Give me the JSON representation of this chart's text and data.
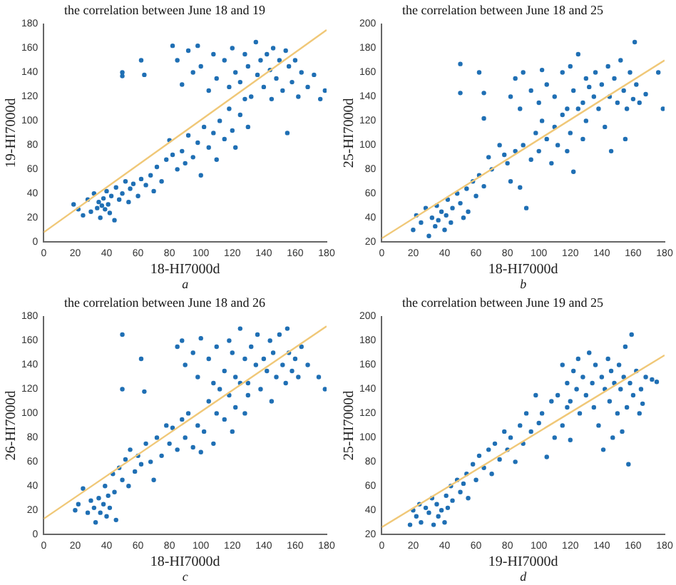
{
  "chart_data": [
    {
      "type": "scatter",
      "title": "the correlation between June 18 and 19",
      "xlabel": "18-HI7000d",
      "ylabel": "19-HI7000d",
      "annotations": [
        "a"
      ],
      "xlim": [
        0,
        180
      ],
      "xticks": [
        0,
        20,
        40,
        60,
        80,
        100,
        120,
        140,
        160,
        180
      ],
      "ylim": [
        0,
        180
      ],
      "yticks": [
        0,
        20,
        40,
        60,
        80,
        100,
        120,
        140,
        160,
        180
      ],
      "series": [
        {
          "marker": "circle",
          "color": "#1f6fb4",
          "x": [
            19,
            22,
            25,
            28,
            30,
            32,
            34,
            35,
            36,
            37,
            38,
            39,
            40,
            41,
            42,
            43,
            45,
            46,
            48,
            50,
            52,
            54,
            55,
            57,
            60,
            62,
            65,
            68,
            70,
            72,
            75,
            78,
            80,
            82,
            85,
            88,
            90,
            92,
            95,
            98,
            100,
            102,
            105,
            108,
            110,
            112,
            115,
            118,
            120,
            122,
            125,
            128,
            130,
            82,
            85,
            88,
            92,
            95,
            98,
            100,
            105,
            108,
            110,
            115,
            118,
            120,
            122,
            125,
            128,
            130,
            132,
            135,
            136,
            138,
            140,
            142,
            144,
            145,
            146,
            148,
            150,
            152,
            154,
            155,
            156,
            158,
            160,
            162,
            164,
            168,
            172,
            176,
            179,
            50,
            62,
            64,
            50
          ],
          "values": [
            31,
            27,
            22,
            35,
            25,
            40,
            28,
            33,
            20,
            30,
            36,
            27,
            42,
            31,
            24,
            38,
            18,
            45,
            35,
            40,
            50,
            33,
            44,
            48,
            38,
            52,
            47,
            55,
            42,
            62,
            50,
            68,
            84,
            72,
            60,
            75,
            65,
            88,
            70,
            82,
            55,
            95,
            78,
            90,
            68,
            100,
            85,
            110,
            92,
            78,
            105,
            118,
            95,
            162,
            150,
            130,
            158,
            140,
            162,
            145,
            125,
            155,
            135,
            150,
            128,
            160,
            140,
            132,
            155,
            145,
            120,
            165,
            138,
            150,
            128,
            155,
            142,
            118,
            160,
            135,
            150,
            125,
            158,
            90,
            145,
            132,
            150,
            120,
            140,
            128,
            138,
            118,
            125,
            140,
            150,
            138,
            137
          ]
        },
        {
          "type": "line",
          "color": "#f0c878",
          "x": [
            0,
            180
          ],
          "values": [
            8,
            175
          ]
        }
      ]
    },
    {
      "type": "scatter",
      "title": "the correlation between June 18 and 25",
      "xlabel": "18-HI7000d",
      "ylabel": "25-HI7000d",
      "annotations": [
        "b"
      ],
      "xlim": [
        0,
        180
      ],
      "xticks": [
        0,
        20,
        40,
        60,
        80,
        100,
        120,
        140,
        160,
        180
      ],
      "ylim": [
        20,
        200
      ],
      "yticks": [
        20,
        40,
        60,
        80,
        100,
        120,
        140,
        160,
        180,
        200
      ],
      "series": [
        {
          "marker": "circle",
          "color": "#1f6fb4",
          "x": [
            20,
            22,
            25,
            28,
            30,
            32,
            34,
            35,
            36,
            38,
            40,
            41,
            42,
            44,
            45,
            48,
            50,
            52,
            54,
            55,
            58,
            60,
            62,
            65,
            68,
            70,
            75,
            78,
            80,
            82,
            85,
            88,
            90,
            92,
            95,
            98,
            100,
            102,
            105,
            108,
            110,
            112,
            115,
            118,
            120,
            122,
            125,
            128,
            130,
            82,
            85,
            88,
            90,
            95,
            100,
            102,
            105,
            110,
            115,
            118,
            120,
            122,
            125,
            128,
            130,
            132,
            135,
            136,
            138,
            140,
            142,
            144,
            145,
            146,
            148,
            150,
            152,
            154,
            155,
            156,
            158,
            160,
            161,
            162,
            164,
            168,
            176,
            179,
            50,
            50,
            62,
            65,
            65
          ],
          "values": [
            30,
            42,
            36,
            48,
            25,
            40,
            33,
            50,
            38,
            45,
            30,
            42,
            55,
            36,
            48,
            60,
            52,
            40,
            64,
            45,
            70,
            58,
            75,
            66,
            90,
            80,
            100,
            92,
            85,
            70,
            95,
            65,
            100,
            48,
            88,
            110,
            95,
            120,
            105,
            85,
            115,
            100,
            125,
            95,
            110,
            78,
            130,
            105,
            120,
            140,
            155,
            130,
            160,
            145,
            135,
            162,
            150,
            140,
            160,
            130,
            165,
            145,
            175,
            135,
            155,
            148,
            140,
            160,
            130,
            150,
            115,
            165,
            140,
            95,
            155,
            135,
            170,
            145,
            105,
            130,
            160,
            138,
            185,
            150,
            135,
            142,
            160,
            130,
            167,
            143,
            160,
            143,
            122
          ]
        },
        {
          "type": "line",
          "color": "#f0c878",
          "x": [
            0,
            180
          ],
          "values": [
            23,
            170
          ]
        }
      ]
    },
    {
      "type": "scatter",
      "title": "the correlation between June 18 and 26",
      "xlabel": "18-HI7000d",
      "ylabel": "26-HI7000d",
      "annotations": [
        "c"
      ],
      "xlim": [
        0,
        180
      ],
      "xticks": [
        0,
        20,
        40,
        60,
        80,
        100,
        120,
        140,
        160,
        180
      ],
      "ylim": [
        0,
        180
      ],
      "yticks": [
        0,
        20,
        40,
        60,
        80,
        100,
        120,
        140,
        160,
        180
      ],
      "series": [
        {
          "marker": "circle",
          "color": "#1f6fb4",
          "x": [
            20,
            22,
            25,
            28,
            30,
            32,
            33,
            35,
            36,
            38,
            39,
            40,
            41,
            42,
            44,
            45,
            46,
            48,
            50,
            52,
            54,
            55,
            58,
            60,
            62,
            65,
            68,
            70,
            72,
            75,
            78,
            80,
            82,
            85,
            88,
            90,
            92,
            95,
            98,
            100,
            102,
            105,
            108,
            110,
            112,
            115,
            118,
            120,
            122,
            125,
            128,
            130,
            85,
            88,
            90,
            95,
            98,
            100,
            105,
            108,
            110,
            115,
            118,
            120,
            122,
            125,
            128,
            130,
            132,
            135,
            136,
            138,
            140,
            142,
            144,
            145,
            146,
            148,
            150,
            152,
            154,
            155,
            156,
            158,
            160,
            162,
            164,
            168,
            175,
            179,
            50,
            50,
            62,
            64
          ],
          "values": [
            20,
            25,
            38,
            18,
            28,
            22,
            10,
            30,
            18,
            25,
            40,
            15,
            32,
            22,
            50,
            35,
            12,
            55,
            45,
            62,
            40,
            70,
            52,
            65,
            58,
            75,
            60,
            45,
            80,
            65,
            90,
            75,
            88,
            70,
            95,
            80,
            100,
            72,
            90,
            68,
            85,
            110,
            75,
            100,
            120,
            95,
            115,
            85,
            105,
            125,
            100,
            115,
            155,
            160,
            140,
            150,
            130,
            162,
            145,
            125,
            155,
            135,
            160,
            150,
            130,
            170,
            145,
            125,
            155,
            140,
            165,
            120,
            145,
            135,
            160,
            110,
            150,
            130,
            165,
            140,
            125,
            170,
            150,
            135,
            145,
            130,
            155,
            140,
            130,
            120,
            165,
            120,
            145,
            118
          ]
        },
        {
          "type": "line",
          "color": "#f0c878",
          "x": [
            0,
            180
          ],
          "values": [
            13,
            172
          ]
        }
      ]
    },
    {
      "type": "scatter",
      "title": "the correlation between June 19 and 25",
      "xlabel": "19-HI7000d",
      "ylabel": "25-HI7000d",
      "annotations": [
        "d"
      ],
      "xlim": [
        0,
        180
      ],
      "xticks": [
        0,
        20,
        40,
        60,
        80,
        100,
        120,
        140,
        160,
        180
      ],
      "ylim": [
        20,
        200
      ],
      "yticks": [
        20,
        40,
        60,
        80,
        100,
        120,
        140,
        160,
        180,
        200
      ],
      "series": [
        {
          "marker": "circle",
          "color": "#1f6fb4",
          "x": [
            18,
            20,
            22,
            24,
            25,
            28,
            30,
            32,
            33,
            35,
            36,
            38,
            40,
            41,
            42,
            44,
            45,
            48,
            50,
            52,
            54,
            55,
            58,
            60,
            62,
            65,
            68,
            70,
            72,
            75,
            78,
            80,
            82,
            85,
            88,
            90,
            92,
            95,
            98,
            100,
            102,
            105,
            108,
            110,
            112,
            115,
            118,
            120,
            115,
            118,
            120,
            122,
            124,
            125,
            126,
            128,
            130,
            132,
            134,
            135,
            136,
            138,
            140,
            141,
            142,
            144,
            145,
            146,
            147,
            148,
            150,
            151,
            152,
            153,
            154,
            155,
            156,
            157,
            158,
            159,
            160,
            162,
            164,
            165,
            166,
            168,
            172,
            175
          ],
          "values": [
            28,
            40,
            35,
            45,
            30,
            42,
            38,
            50,
            28,
            45,
            35,
            40,
            30,
            52,
            42,
            60,
            48,
            65,
            55,
            62,
            70,
            50,
            78,
            65,
            85,
            75,
            90,
            70,
            95,
            82,
            105,
            90,
            100,
            80,
            110,
            95,
            120,
            105,
            135,
            112,
            120,
            84,
            130,
            100,
            135,
            110,
            125,
            98,
            160,
            145,
            130,
            155,
            140,
            165,
            120,
            150,
            135,
            170,
            145,
            125,
            160,
            110,
            150,
            90,
            140,
            165,
            130,
            155,
            100,
            145,
            120,
            160,
            140,
            105,
            150,
            175,
            125,
            78,
            145,
            185,
            135,
            155,
            120,
            140,
            128,
            150,
            148,
            146
          ]
        },
        {
          "type": "line",
          "color": "#f0c878",
          "x": [
            0,
            180
          ],
          "values": [
            26,
            168
          ]
        }
      ]
    }
  ]
}
